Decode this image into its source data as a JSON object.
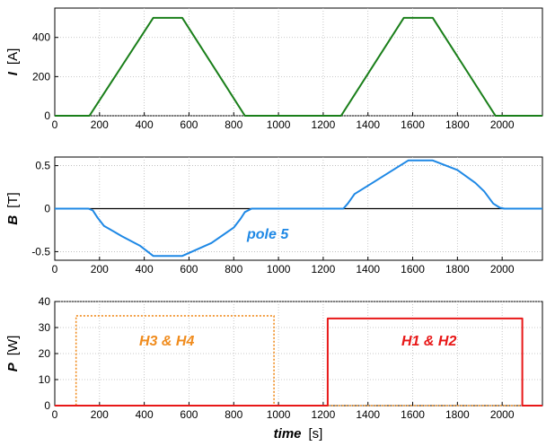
{
  "chart_data": [
    {
      "type": "line",
      "ylabel": {
        "symbol": "I",
        "unit": "[A]"
      },
      "xlim": [
        0,
        2180
      ],
      "ylim": [
        0,
        550
      ],
      "x_ticks": [
        0,
        200,
        400,
        600,
        800,
        1000,
        1200,
        1400,
        1600,
        1800,
        2000
      ],
      "y_ticks": [
        0,
        200,
        400
      ],
      "grid": true,
      "series": [
        {
          "color": "#1a7f1a",
          "style": "solid",
          "points": [
            [
              0,
              0
            ],
            [
              155,
              0
            ],
            [
              440,
              500
            ],
            [
              570,
              500
            ],
            [
              850,
              0
            ],
            [
              1280,
              0
            ],
            [
              1560,
              500
            ],
            [
              1690,
              500
            ],
            [
              1970,
              0
            ],
            [
              2180,
              0
            ]
          ]
        }
      ]
    },
    {
      "type": "line",
      "ylabel": {
        "symbol": "B",
        "unit": "[T]"
      },
      "xlim": [
        0,
        2180
      ],
      "ylim": [
        -0.6,
        0.6
      ],
      "x_ticks": [
        0,
        200,
        400,
        600,
        800,
        1000,
        1200,
        1400,
        1600,
        1800,
        2000
      ],
      "y_ticks": [
        -0.5,
        0,
        0.5
      ],
      "grid": true,
      "zero_line": true,
      "annotations": [
        {
          "text": "pole 5",
          "color": "#1e88e5"
        }
      ],
      "series": [
        {
          "color": "#1e88e5",
          "style": "solid",
          "points": [
            [
              0,
              0
            ],
            [
              150,
              0
            ],
            [
              170,
              -0.02
            ],
            [
              190,
              -0.1
            ],
            [
              220,
              -0.2
            ],
            [
              300,
              -0.32
            ],
            [
              380,
              -0.43
            ],
            [
              440,
              -0.55
            ],
            [
              570,
              -0.55
            ],
            [
              700,
              -0.4
            ],
            [
              800,
              -0.22
            ],
            [
              830,
              -0.12
            ],
            [
              850,
              -0.04
            ],
            [
              880,
              0
            ],
            [
              1290,
              0
            ],
            [
              1310,
              0.06
            ],
            [
              1340,
              0.17
            ],
            [
              1420,
              0.3
            ],
            [
              1500,
              0.43
            ],
            [
              1580,
              0.56
            ],
            [
              1690,
              0.56
            ],
            [
              1800,
              0.45
            ],
            [
              1880,
              0.3
            ],
            [
              1920,
              0.2
            ],
            [
              1960,
              0.06
            ],
            [
              1990,
              0.01
            ],
            [
              2010,
              0
            ],
            [
              2180,
              0
            ]
          ]
        }
      ]
    },
    {
      "type": "line",
      "ylabel": {
        "symbol": "P",
        "unit": "[W]"
      },
      "xlabel": {
        "symbol": "time",
        "unit": "[s]"
      },
      "xlim": [
        0,
        2180
      ],
      "ylim": [
        0,
        40
      ],
      "x_ticks": [
        0,
        200,
        400,
        600,
        800,
        1000,
        1200,
        1400,
        1600,
        1800,
        2000
      ],
      "y_ticks": [
        0,
        10,
        20,
        30,
        40
      ],
      "grid": true,
      "annotations": [
        {
          "text": "H3  &  H4",
          "color": "#f08c1e"
        },
        {
          "text": "H1  &  H2",
          "color": "#e81818"
        }
      ],
      "series": [
        {
          "name": "H3 & H4",
          "color": "#f08c1e",
          "style": "dotted",
          "points": [
            [
              0,
              0
            ],
            [
              95,
              0
            ],
            [
              95,
              34.5
            ],
            [
              980,
              34.5
            ],
            [
              980,
              0
            ],
            [
              2180,
              0
            ]
          ]
        },
        {
          "name": "H1 & H2",
          "color": "#e81818",
          "style": "solid",
          "points": [
            [
              0,
              0
            ],
            [
              1220,
              0
            ],
            [
              1220,
              33.5
            ],
            [
              2090,
              33.5
            ],
            [
              2090,
              0
            ],
            [
              2180,
              0
            ]
          ]
        }
      ]
    }
  ]
}
